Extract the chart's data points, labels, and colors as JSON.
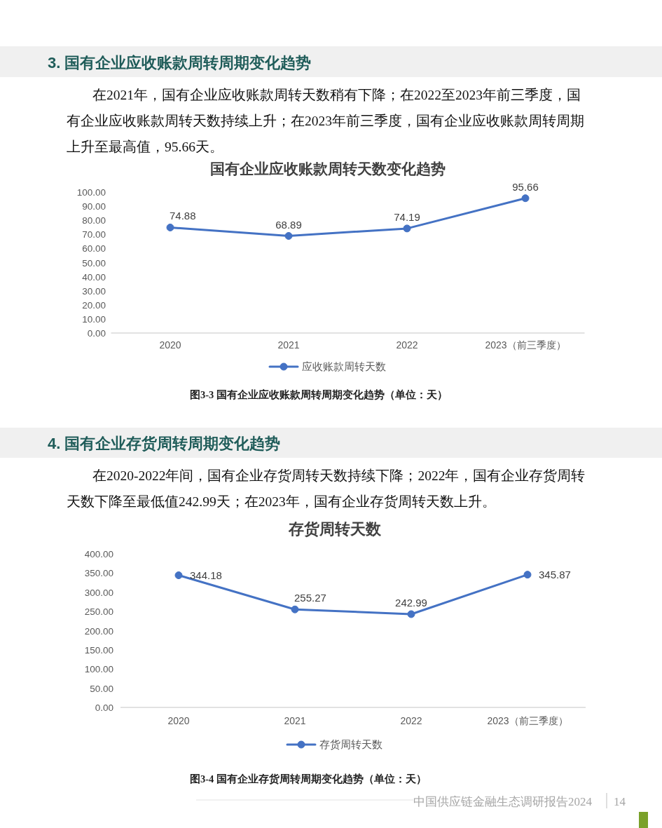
{
  "chart_data": [
    {
      "type": "line",
      "title": "国有企业应收账款周转天数变化趋势",
      "annotations": [
        "3. 国有企业应收账款周转周期变化趋势",
        "在2021年，国有企业应收账款周转天数稍有下降；在2022至2023年前三季度，国有企业应收账款周转天数持续上升；在2023年前三季度，国有企业应收账款周转周期上升至最高值，95.66天。",
        "图3-3 国有企业应收账款周转周期变化趋势（单位：天）"
      ],
      "categories": [
        "2020",
        "2021",
        "2022",
        "2023（前三季度）"
      ],
      "series": [
        {
          "name": "应收账款周转天数",
          "color": "#4472c4",
          "values": [
            74.88,
            68.89,
            74.19,
            95.66
          ]
        }
      ],
      "ylim": [
        0,
        100
      ],
      "yticks": [
        {
          "value": 0,
          "label": "0.00"
        },
        {
          "value": 10,
          "label": "10.00"
        },
        {
          "value": 20,
          "label": "20.00"
        },
        {
          "value": 30,
          "label": "30.00"
        },
        {
          "value": 40,
          "label": "40.00"
        },
        {
          "value": 50,
          "label": "50.00"
        },
        {
          "value": 60,
          "label": "60.00"
        },
        {
          "value": 70,
          "label": "70.00"
        },
        {
          "value": 80,
          "label": "80.00"
        },
        {
          "value": 90,
          "label": "90.00"
        },
        {
          "value": 100,
          "label": "100.00"
        }
      ],
      "data_labels": true,
      "marker": "circle",
      "line_style": "solid",
      "legend": "bottom"
    },
    {
      "type": "line",
      "title": "存货周转天数",
      "annotations": [
        "4. 国有企业存货周转周期变化趋势",
        "在2020-2022年间，国有企业存货周转天数持续下降；2022年，国有企业存货周转天数下降至最低值242.99天；在2023年，国有企业存货周转天数上升。",
        "图3-4 国有企业存货周转周期变化趋势（单位：天）",
        "中国供应链金融生态调研报告2024",
        "14"
      ],
      "categories": [
        "2020",
        "2021",
        "2022",
        "2023（前三季度）"
      ],
      "series": [
        {
          "name": "存货周转天数",
          "color": "#4472c4",
          "values": [
            344.18,
            255.27,
            242.99,
            345.87
          ]
        }
      ],
      "ylim": [
        0,
        400
      ],
      "yticks": [
        {
          "value": 0,
          "label": "0.00"
        },
        {
          "value": 50,
          "label": "50.00"
        },
        {
          "value": 100,
          "label": "100.00"
        },
        {
          "value": 150,
          "label": "150.00"
        },
        {
          "value": 200,
          "label": "200.00"
        },
        {
          "value": 250,
          "label": "250.00"
        },
        {
          "value": 300,
          "label": "300.00"
        },
        {
          "value": 350,
          "label": "350.00"
        },
        {
          "value": 400,
          "label": "400.00"
        }
      ],
      "data_labels": true,
      "marker": "circle",
      "line_style": "solid",
      "legend": "bottom"
    }
  ]
}
